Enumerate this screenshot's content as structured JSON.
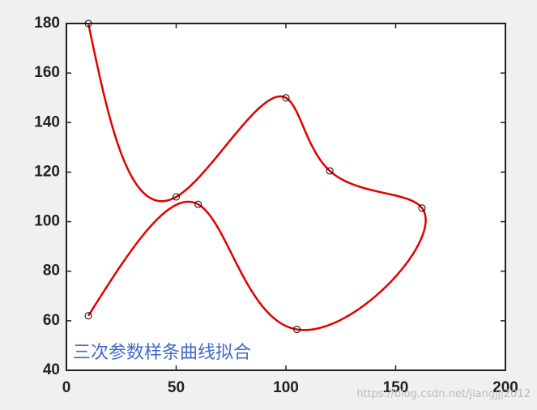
{
  "chart_data": {
    "type": "spline",
    "x": [
      10,
      50,
      100,
      120,
      162,
      105,
      60,
      10
    ],
    "y": [
      180,
      110,
      150,
      120.5,
      105.5,
      56.5,
      107,
      62
    ],
    "color": "#e00000",
    "marker_color": "#000000",
    "xlim": [
      0,
      200
    ],
    "xticks": [
      0,
      50,
      100,
      150,
      200
    ],
    "ylim": [
      40,
      180
    ],
    "yticks": [
      40,
      60,
      80,
      100,
      120,
      140,
      160,
      180
    ],
    "annotation": "三次参数样条曲线拟合",
    "annotation_color": "#4169c8",
    "watermark": "https://blog.csdn.net/jiangjjj2012"
  }
}
